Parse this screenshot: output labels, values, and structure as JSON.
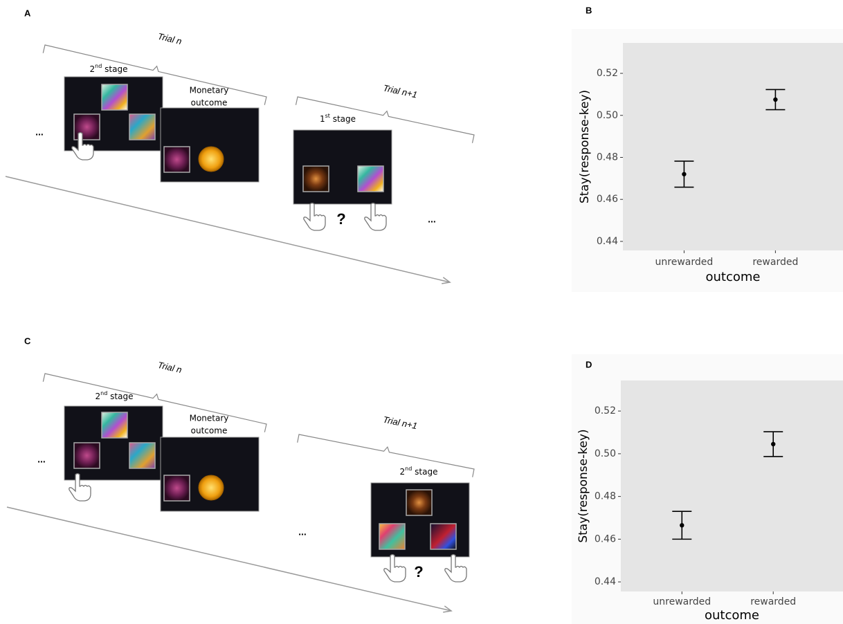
{
  "panels": [
    {
      "label": "A",
      "trial_n": "Trial n",
      "stage": [
        "2",
        "nd",
        " stage"
      ],
      "outcome": [
        "Monetary",
        "outcome"
      ],
      "trial_next": "Trial n+1",
      "next_stage": [
        "1",
        "st",
        " stage"
      ],
      "ellipsis_left": "...",
      "question": "?",
      "ellipsis_right": "..."
    },
    {
      "label": "C",
      "trial_n": "Trial n",
      "stage": [
        "2",
        "nd",
        " stage"
      ],
      "outcome": [
        "Monetary",
        "outcome"
      ],
      "trial_next": "Trial n+1",
      "next_stage": [
        "2",
        "nd",
        " stage"
      ],
      "ellipsis_left": "...",
      "question": "?",
      "ellipsis_right": "..."
    }
  ],
  "chart_data": [
    {
      "type": "errorbar",
      "title": "B",
      "y_label": "Stay(response-key)",
      "x_label": "outcome",
      "categories": [
        "unrewarded",
        "rewarded"
      ],
      "values": [
        0.472,
        0.5075
      ],
      "errors": [
        0.0062,
        0.0048
      ],
      "color": "#000000",
      "background": "#e5e5e5",
      "ylim": [
        0.4357,
        0.5345
      ],
      "yticks": [
        0.44,
        0.46,
        0.48,
        {
          "value": 0.5,
          "label": "0.50"
        },
        0.52
      ]
    },
    {
      "type": "errorbar",
      "title": "D",
      "y_label": "Stay(response-key)",
      "x_label": "outcome",
      "categories": [
        "unrewarded",
        "rewarded"
      ],
      "values": [
        0.4665,
        0.5045
      ],
      "errors": [
        0.0065,
        0.0058
      ],
      "color": "#000000",
      "background": "#e5e5e5",
      "ylim": [
        0.4355,
        0.5343
      ],
      "yticks": [
        0.44,
        0.46,
        0.48,
        {
          "value": 0.5,
          "label": "0.50"
        },
        0.52
      ]
    }
  ]
}
